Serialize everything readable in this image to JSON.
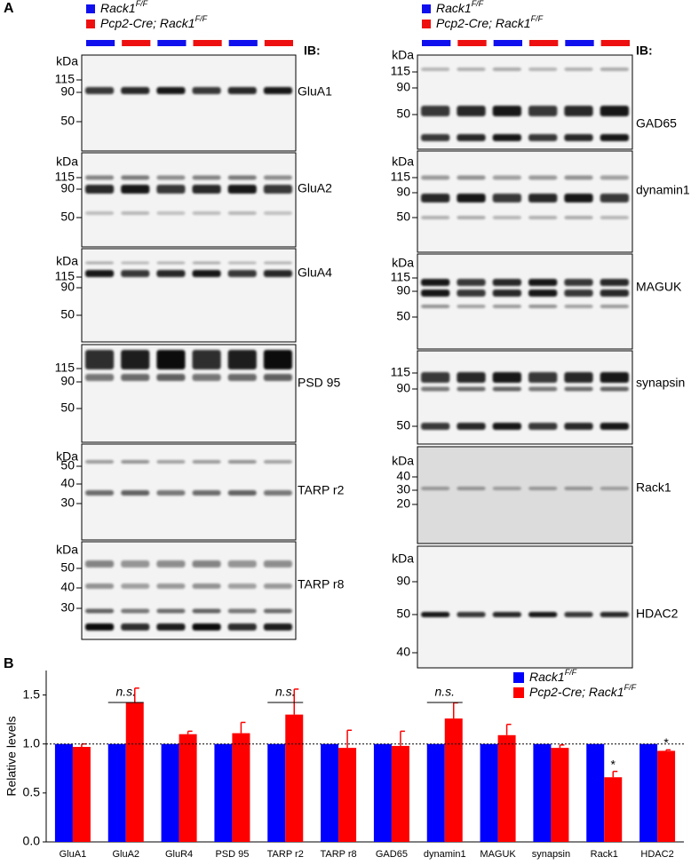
{
  "panel_a": {
    "label": "A",
    "ib": "IB:",
    "legend": [
      {
        "name": "Rack1",
        "sup": "F/F",
        "color": "#1010ee"
      },
      {
        "name": "Pcp2-Cre; Rack1",
        "sup": "F/F",
        "color": "#ee1010"
      }
    ],
    "columns": [
      {
        "blots": [
          {
            "unit": "kDa",
            "markers": [
              115,
              90,
              50
            ],
            "target": "GluA1"
          },
          {
            "unit": "kDa",
            "markers": [
              115,
              90,
              50
            ],
            "target": "GluA2"
          },
          {
            "unit": "kDa",
            "markers": [
              115,
              90,
              50
            ],
            "target": "GluA4"
          },
          {
            "markers": [
              115,
              90,
              50
            ],
            "target": "PSD 95"
          },
          {
            "unit": "kDa",
            "markers": [
              50,
              40,
              30
            ],
            "target": "TARP r2"
          },
          {
            "unit": "kDa",
            "markers": [
              50,
              40,
              30
            ],
            "target": "TARP r8"
          }
        ]
      },
      {
        "blots": [
          {
            "unit": "kDa",
            "markers": [
              115,
              90,
              50
            ],
            "target": "GAD65"
          },
          {
            "unit": "kDa",
            "markers": [
              115,
              90,
              50
            ],
            "target": "dynamin1"
          },
          {
            "unit": "kDa",
            "markers": [
              115,
              90,
              50
            ],
            "target": "MAGUK"
          },
          {
            "markers": [
              115,
              90,
              50
            ],
            "target": "synapsin"
          },
          {
            "unit": "kDa",
            "markers": [
              40,
              30,
              20
            ],
            "target": "Rack1"
          },
          {
            "unit": "kDa",
            "markers": [
              90,
              50,
              40
            ],
            "target": "HDAC2"
          }
        ]
      }
    ]
  },
  "chart_data": {
    "type": "bar",
    "label": "B",
    "ylabel": "Relative levels",
    "categories": [
      "GluA1",
      "GluA2",
      "GluR4",
      "PSD 95",
      "TARP r2",
      "TARP r8",
      "GAD65",
      "dynamin1",
      "MAGUK",
      "synapsin",
      "Rack1",
      "HDAC2"
    ],
    "series": [
      {
        "name": "Rack1",
        "name_sup": "F/F",
        "color": "#0000ff",
        "values": [
          1,
          1,
          1,
          1,
          1,
          1,
          1,
          1,
          1,
          1,
          1,
          1
        ]
      },
      {
        "name": "Pcp2-Cre; Rack1",
        "name_sup": "F/F",
        "color": "#ff0000",
        "values": [
          0.97,
          1.42,
          1.1,
          1.11,
          1.3,
          0.96,
          0.98,
          1.26,
          1.09,
          0.96,
          0.66,
          0.93
        ],
        "errors": [
          0.03,
          0.15,
          0.03,
          0.11,
          0.26,
          0.18,
          0.15,
          0.16,
          0.11,
          0.03,
          0.06,
          0.01
        ]
      }
    ],
    "ylim": [
      0,
      1.75
    ],
    "yticks": [
      {
        "value": 0,
        "label": "0.0"
      },
      0.5,
      {
        "value": 1,
        "label": "1.0"
      },
      1.5
    ],
    "reference_line": 1,
    "annotations": [
      {
        "text": "n.s.",
        "category": "GluA2"
      },
      {
        "text": "n.s.",
        "category": "TARP r2"
      },
      {
        "text": "n.s.",
        "category": "dynamin1"
      },
      {
        "text": "*",
        "category": "Rack1"
      },
      {
        "text": "*",
        "category": "HDAC2"
      }
    ]
  }
}
